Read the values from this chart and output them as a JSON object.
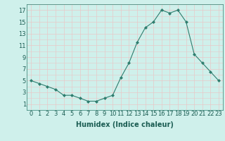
{
  "x": [
    0,
    1,
    2,
    3,
    4,
    5,
    6,
    7,
    8,
    9,
    10,
    11,
    12,
    13,
    14,
    15,
    16,
    17,
    18,
    19,
    20,
    21,
    22,
    23
  ],
  "y": [
    5,
    4.5,
    4,
    3.5,
    2.5,
    2.5,
    2,
    1.5,
    1.5,
    2,
    2.5,
    5.5,
    8,
    11.5,
    14,
    15,
    17,
    16.5,
    17,
    15,
    9.5,
    8,
    6.5,
    5
  ],
  "xlabel": "Humidex (Indice chaleur)",
  "ylim": [
    0,
    18
  ],
  "xlim": [
    -0.5,
    23.5
  ],
  "yticks": [
    1,
    3,
    5,
    7,
    9,
    11,
    13,
    15,
    17
  ],
  "xticks": [
    0,
    1,
    2,
    3,
    4,
    5,
    6,
    7,
    8,
    9,
    10,
    11,
    12,
    13,
    14,
    15,
    16,
    17,
    18,
    19,
    20,
    21,
    22,
    23
  ],
  "xtick_labels": [
    "0",
    "1",
    "2",
    "3",
    "4",
    "5",
    "6",
    "7",
    "8",
    "9",
    "10",
    "11",
    "12",
    "13",
    "14",
    "15",
    "16",
    "17",
    "18",
    "19",
    "20",
    "21",
    "22",
    "23"
  ],
  "line_color": "#2e7d6e",
  "marker": "D",
  "marker_size": 2.0,
  "bg_color": "#cff0eb",
  "grid_color": "#e8c8c8",
  "xlabel_fontsize": 7,
  "tick_fontsize": 6
}
